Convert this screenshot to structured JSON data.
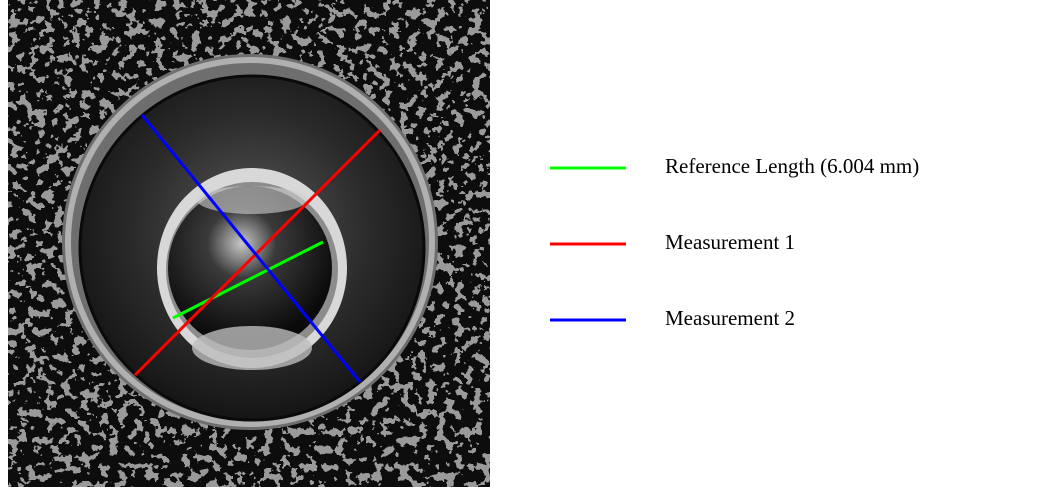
{
  "legend": {
    "items": [
      {
        "label": "Reference Length (6.004 mm)",
        "color": "#00ff00"
      },
      {
        "label": "Measurement 1",
        "color": "#ff0000"
      },
      {
        "label": "Measurement 2",
        "color": "#0000ff"
      }
    ]
  }
}
